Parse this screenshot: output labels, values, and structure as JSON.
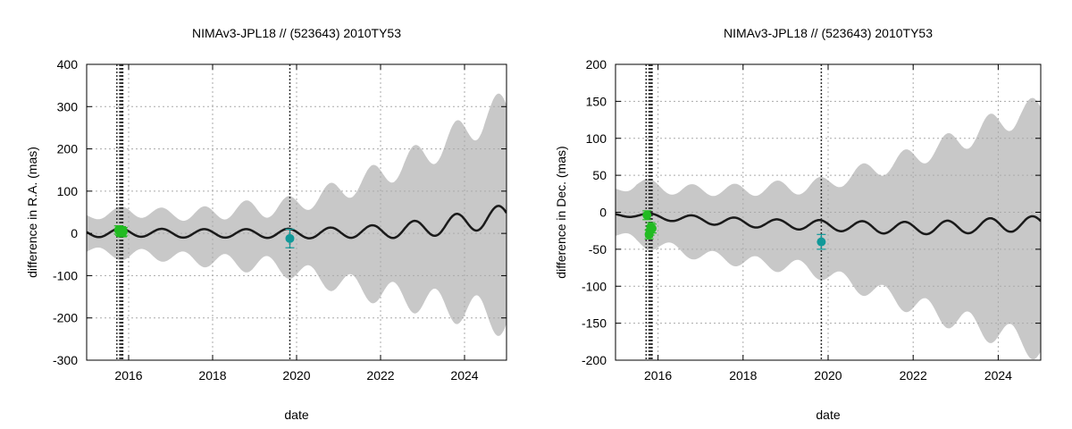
{
  "chart_data": [
    {
      "type": "line",
      "title": "NIMAv3-JPL18 // (523643) 2010TY53",
      "xlabel": "date",
      "ylabel": "difference in R.A. (mas)",
      "xlim": [
        2015.0,
        2025.0
      ],
      "ylim": [
        -300,
        400
      ],
      "xticks": [
        2016,
        2018,
        2020,
        2022,
        2024
      ],
      "yticks": [
        -300,
        -200,
        -100,
        0,
        100,
        200,
        300,
        400
      ],
      "grid": "dotted",
      "colors": {
        "band": "#c8c8c8",
        "line": "#1a1a1a",
        "green": "#22bb22",
        "teal": "#119999",
        "frame": "#000000",
        "grid": "#aaaaaa"
      },
      "vlines": [
        2015.72,
        2015.79,
        2015.82,
        2015.84,
        2015.86,
        2019.84
      ],
      "line": {
        "x": [
          2015.0,
          2015.5,
          2016.0,
          2016.5,
          2017.0,
          2017.5,
          2018.0,
          2018.5,
          2019.0,
          2019.5,
          2020.0,
          2020.5,
          2021.0,
          2021.5,
          2022.0,
          2022.5,
          2023.0,
          2023.5,
          2024.0,
          2024.5,
          2025.0
        ],
        "base": [
          0,
          2,
          2,
          2,
          0,
          0,
          0,
          0,
          0,
          0,
          0,
          0,
          2,
          4,
          4,
          8,
          12,
          18,
          26,
          36,
          40
        ],
        "amplitude": [
          10,
          10,
          10,
          10,
          10,
          10,
          10,
          10,
          10,
          11,
          11,
          12,
          13,
          14,
          16,
          18,
          20,
          22,
          24,
          26,
          27
        ],
        "period": 1.0,
        "phase_x": 2015.55
      },
      "band": {
        "x": [
          2015.0,
          2015.5,
          2016.0,
          2016.5,
          2017.0,
          2017.5,
          2018.0,
          2018.5,
          2019.0,
          2019.5,
          2020.0,
          2020.5,
          2021.0,
          2021.5,
          2022.0,
          2022.5,
          2023.0,
          2023.5,
          2024.0,
          2024.5,
          2025.0
        ],
        "upper": [
          40,
          48,
          52,
          50,
          45,
          45,
          48,
          55,
          58,
          60,
          70,
          85,
          100,
          120,
          140,
          160,
          185,
          210,
          240,
          280,
          290
        ],
        "lower": [
          -40,
          -48,
          -52,
          -50,
          -55,
          -60,
          -65,
          -70,
          -72,
          -78,
          -90,
          -105,
          -115,
          -130,
          -140,
          -150,
          -160,
          -170,
          -180,
          -195,
          -200
        ],
        "ripple": [
          10,
          12,
          14,
          14,
          14,
          16,
          18,
          20,
          22,
          22,
          22,
          24,
          26,
          28,
          30,
          32,
          34,
          36,
          40,
          44,
          45
        ]
      },
      "points": [
        {
          "x": 2015.76,
          "y": 8,
          "err": 10,
          "color": "green"
        },
        {
          "x": 2015.79,
          "y": 5,
          "err": 10,
          "color": "green"
        },
        {
          "x": 2015.81,
          "y": 3,
          "err": 10,
          "color": "green"
        },
        {
          "x": 2015.83,
          "y": 6,
          "err": 10,
          "color": "green"
        },
        {
          "x": 2015.85,
          "y": 2,
          "err": 10,
          "color": "green"
        },
        {
          "x": 2015.87,
          "y": 4,
          "err": 10,
          "color": "green"
        },
        {
          "x": 2019.84,
          "y": -12,
          "err": 22,
          "color": "teal"
        }
      ]
    },
    {
      "type": "line",
      "title": "NIMAv3-JPL18 // (523643) 2010TY53",
      "xlabel": "date",
      "ylabel": "difference in Dec. (mas)",
      "xlim": [
        2015.0,
        2025.0
      ],
      "ylim": [
        -200,
        200
      ],
      "xticks": [
        2016,
        2018,
        2020,
        2022,
        2024
      ],
      "yticks": [
        -200,
        -150,
        -100,
        -50,
        0,
        50,
        100,
        150,
        200
      ],
      "grid": "dotted",
      "colors": {
        "band": "#c8c8c8",
        "line": "#1a1a1a",
        "green": "#22bb22",
        "teal": "#119999",
        "frame": "#000000",
        "grid": "#aaaaaa"
      },
      "vlines": [
        2015.72,
        2015.79,
        2015.82,
        2015.84,
        2015.86,
        2019.84
      ],
      "line": {
        "x": [
          2015.0,
          2015.5,
          2016.0,
          2016.5,
          2017.0,
          2017.5,
          2018.0,
          2018.5,
          2019.0,
          2019.5,
          2020.0,
          2020.5,
          2021.0,
          2021.5,
          2022.0,
          2022.5,
          2023.0,
          2023.5,
          2024.0,
          2024.5,
          2025.0
        ],
        "base": [
          -3,
          -4,
          -6,
          -8,
          -10,
          -12,
          -14,
          -15,
          -16,
          -17,
          -18,
          -19,
          -20,
          -21,
          -21,
          -21,
          -20,
          -19,
          -17,
          -16,
          -15
        ],
        "amplitude": [
          2,
          3,
          4,
          5,
          5,
          6,
          6,
          6,
          6,
          7,
          7,
          7,
          8,
          8,
          8,
          9,
          9,
          9,
          10,
          10,
          10
        ],
        "period": 1.0,
        "phase_x": 2015.55
      },
      "band": {
        "x": [
          2015.0,
          2015.5,
          2016.0,
          2016.5,
          2017.0,
          2017.5,
          2018.0,
          2018.5,
          2019.0,
          2019.5,
          2020.0,
          2020.5,
          2021.0,
          2021.5,
          2022.0,
          2022.5,
          2023.0,
          2023.5,
          2024.0,
          2024.5,
          2025.0
        ],
        "upper": [
          30,
          40,
          35,
          30,
          30,
          30,
          30,
          32,
          34,
          34,
          40,
          48,
          58,
          65,
          75,
          85,
          95,
          108,
          120,
          135,
          135
        ],
        "lower": [
          -30,
          -40,
          -45,
          -52,
          -58,
          -62,
          -66,
          -70,
          -72,
          -76,
          -85,
          -95,
          -105,
          -115,
          -125,
          -135,
          -145,
          -155,
          -162,
          -175,
          -182
        ],
        "ripple": [
          6,
          8,
          8,
          8,
          8,
          8,
          9,
          9,
          10,
          10,
          10,
          11,
          12,
          13,
          14,
          15,
          16,
          17,
          18,
          19,
          20
        ]
      },
      "points": [
        {
          "x": 2015.74,
          "y": -4,
          "err": 6,
          "color": "green"
        },
        {
          "x": 2015.79,
          "y": -30,
          "err": 6,
          "color": "green"
        },
        {
          "x": 2015.81,
          "y": -25,
          "err": 6,
          "color": "green"
        },
        {
          "x": 2015.83,
          "y": -20,
          "err": 6,
          "color": "green"
        },
        {
          "x": 2015.86,
          "y": -22,
          "err": 6,
          "color": "green"
        },
        {
          "x": 2019.84,
          "y": -40,
          "err": 10,
          "color": "teal"
        }
      ]
    }
  ]
}
